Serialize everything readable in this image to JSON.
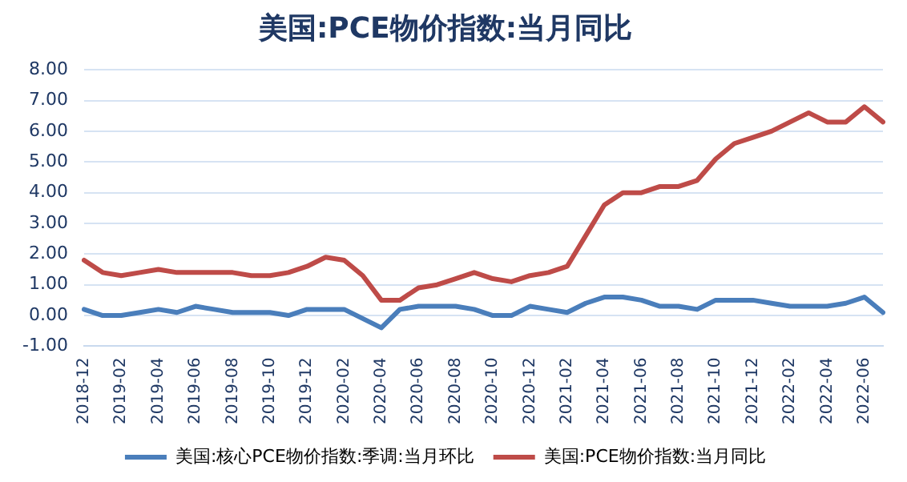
{
  "chart_data": {
    "type": "line",
    "title": "美国:PCE物价指数:当月同比",
    "categories": [
      "2018-12",
      null,
      "2019-02",
      null,
      "2019-04",
      null,
      "2019-06",
      null,
      "2019-08",
      null,
      "2019-10",
      null,
      "2019-12",
      null,
      "2020-02",
      null,
      "2020-04",
      null,
      "2020-06",
      null,
      "2020-08",
      null,
      "2020-10",
      null,
      "2020-12",
      null,
      "2021-02",
      null,
      "2021-04",
      null,
      "2021-06",
      null,
      "2021-08",
      null,
      "2021-10",
      null,
      "2021-12",
      null,
      "2022-02",
      null,
      "2022-04",
      null,
      "2022-06",
      null
    ],
    "series": [
      {
        "name": "美国:核心PCE物价指数:季调:当月环比",
        "color": "#4a7ebb",
        "values": [
          0.2,
          0.0,
          0.0,
          0.1,
          0.2,
          0.1,
          0.3,
          0.2,
          0.1,
          0.1,
          0.1,
          0.0,
          0.2,
          0.2,
          0.2,
          -0.1,
          -0.4,
          0.2,
          0.3,
          0.3,
          0.3,
          0.2,
          0.0,
          0.0,
          0.3,
          0.2,
          0.1,
          0.4,
          0.6,
          0.6,
          0.5,
          0.3,
          0.3,
          0.2,
          0.5,
          0.5,
          0.5,
          0.4,
          0.3,
          0.3,
          0.3,
          0.4,
          0.6,
          0.1
        ]
      },
      {
        "name": "美国:PCE物价指数:当月同比",
        "color": "#be4b48",
        "values": [
          1.8,
          1.4,
          1.3,
          1.4,
          1.5,
          1.4,
          1.4,
          1.4,
          1.4,
          1.3,
          1.3,
          1.4,
          1.6,
          1.9,
          1.8,
          1.3,
          0.5,
          0.5,
          0.9,
          1.0,
          1.2,
          1.4,
          1.2,
          1.1,
          1.3,
          1.4,
          1.6,
          2.6,
          3.6,
          4.0,
          4.0,
          4.2,
          4.2,
          4.4,
          5.1,
          5.6,
          5.8,
          6.0,
          6.3,
          6.6,
          6.3,
          6.3,
          6.8,
          6.3
        ]
      }
    ],
    "ylim": [
      -1,
      8
    ],
    "yticks": [
      {
        "value": -1,
        "label": "-1.00"
      },
      {
        "value": 0,
        "label": "0.00"
      },
      {
        "value": 1,
        "label": "1.00"
      },
      {
        "value": 2,
        "label": "2.00"
      },
      {
        "value": 3,
        "label": "3.00"
      },
      {
        "value": 4,
        "label": "4.00"
      },
      {
        "value": 5,
        "label": "5.00"
      },
      {
        "value": 6,
        "label": "6.00"
      },
      {
        "value": 7,
        "label": "7.00"
      },
      {
        "value": 8,
        "label": "8.00"
      }
    ],
    "grid": "y",
    "legend": "bottom",
    "marker": "none",
    "line_style": "solid"
  }
}
